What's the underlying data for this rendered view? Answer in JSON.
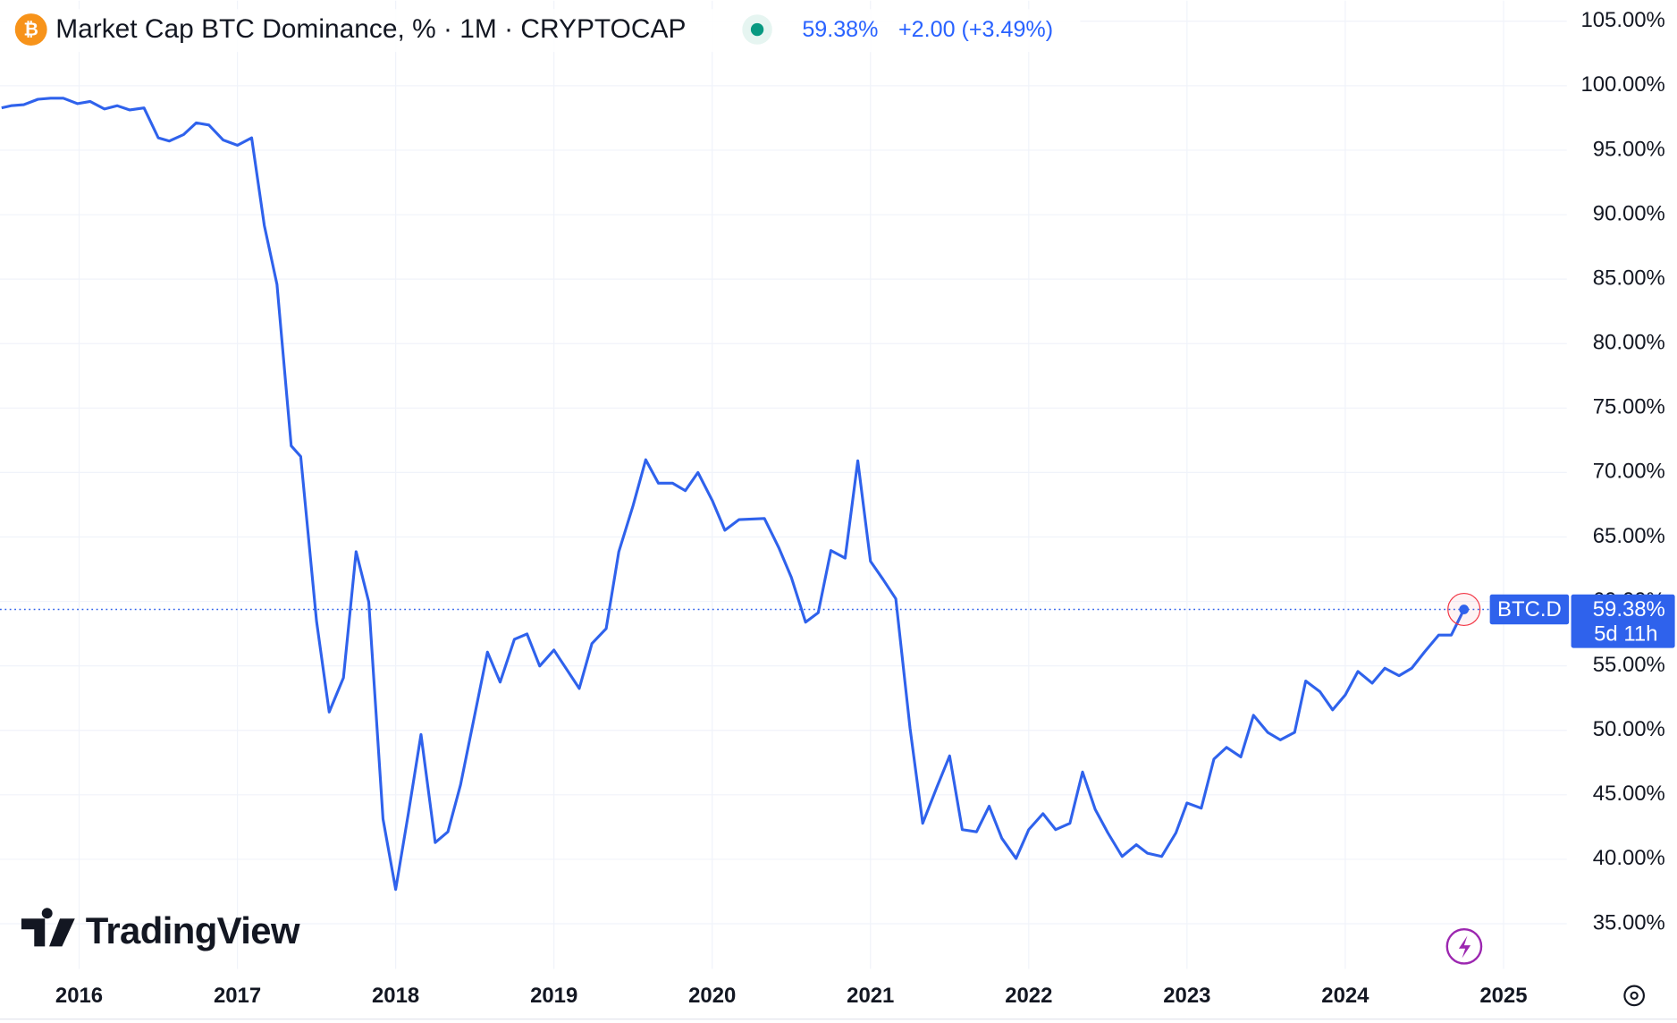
{
  "chart_data": {
    "type": "line",
    "title": "Market Cap BTC Dominance, % · 1M · CRYPTOCAP",
    "price_label": "59.38%",
    "change_label": "+2.00 (+3.49%)",
    "symbol": "BTC.D",
    "countdown": "5d 11h",
    "brand": "TradingView",
    "grid": true,
    "xlim": [
      2015.5,
      2025.4
    ],
    "ylim": [
      31.5,
      106.6
    ],
    "xticks": [
      2016,
      2017,
      2018,
      2019,
      2020,
      2021,
      2022,
      2023,
      2024,
      2025
    ],
    "yticks": [
      {
        "value": 35,
        "label": "35.00%"
      },
      {
        "value": 40,
        "label": "40.00%"
      },
      {
        "value": 45,
        "label": "45.00%"
      },
      {
        "value": 50,
        "label": "50.00%"
      },
      {
        "value": 55,
        "label": "55.00%"
      },
      {
        "value": 60,
        "label": "60.00%"
      },
      {
        "value": 65,
        "label": "65.00%"
      },
      {
        "value": 70,
        "label": "70.00%"
      },
      {
        "value": 75,
        "label": "75.00%"
      },
      {
        "value": 80,
        "label": "80.00%"
      },
      {
        "value": 85,
        "label": "85.00%"
      },
      {
        "value": 90,
        "label": "90.00%"
      },
      {
        "value": 95,
        "label": "95.00%"
      },
      {
        "value": 100,
        "label": "100.00%"
      },
      {
        "value": 105,
        "label": "105.00%"
      }
    ],
    "x": [
      2015.51,
      2015.57,
      2015.65,
      2015.74,
      2015.82,
      2015.9,
      2015.99,
      2016.07,
      2016.16,
      2016.24,
      2016.32,
      2016.41,
      2016.5,
      2016.57,
      2016.66,
      2016.74,
      2016.82,
      2016.91,
      2017.0,
      2017.09,
      2017.17,
      2017.25,
      2017.34,
      2017.4,
      2017.5,
      2017.58,
      2017.67,
      2017.75,
      2017.83,
      2017.92,
      2018.0,
      2018.08,
      2018.16,
      2018.25,
      2018.33,
      2018.41,
      2018.58,
      2018.66,
      2018.75,
      2018.83,
      2018.91,
      2019.0,
      2019.16,
      2019.24,
      2019.33,
      2019.41,
      2019.5,
      2019.58,
      2019.66,
      2019.75,
      2019.83,
      2019.91,
      2020.0,
      2020.08,
      2020.17,
      2020.33,
      2020.42,
      2020.5,
      2020.59,
      2020.67,
      2020.75,
      2020.84,
      2020.92,
      2021.0,
      2021.08,
      2021.16,
      2021.25,
      2021.33,
      2021.42,
      2021.5,
      2021.58,
      2021.67,
      2021.75,
      2021.83,
      2021.92,
      2022.0,
      2022.09,
      2022.17,
      2022.26,
      2022.34,
      2022.42,
      2022.5,
      2022.59,
      2022.68,
      2022.75,
      2022.84,
      2022.93,
      2023.0,
      2023.09,
      2023.17,
      2023.25,
      2023.34,
      2023.42,
      2023.51,
      2023.59,
      2023.68,
      2023.75,
      2023.84,
      2023.92,
      2024.0,
      2024.08,
      2024.17,
      2024.25,
      2024.34,
      2024.42,
      2024.5,
      2024.59,
      2024.67,
      2024.75
    ],
    "series": [
      {
        "name": "BTC.D",
        "color": "#2f62ec",
        "values": [
          98.28,
          98.45,
          98.53,
          98.95,
          99.03,
          99.03,
          98.61,
          98.78,
          98.2,
          98.45,
          98.12,
          98.28,
          95.96,
          95.71,
          96.21,
          97.12,
          96.95,
          95.79,
          95.38,
          95.96,
          89.16,
          84.6,
          72.07,
          71.24,
          58.47,
          51.42,
          54.08,
          63.86,
          59.96,
          43.13,
          37.66,
          43.54,
          49.68,
          41.3,
          42.13,
          45.78,
          56.07,
          53.74,
          57.06,
          57.48,
          54.99,
          56.23,
          53.25,
          56.73,
          57.89,
          63.86,
          67.43,
          70.99,
          69.17,
          69.17,
          68.59,
          70.0,
          67.84,
          65.52,
          66.35,
          66.43,
          64.19,
          61.87,
          58.39,
          59.13,
          63.95,
          63.36,
          70.91,
          63.12,
          61.7,
          60.21,
          50.18,
          42.79,
          45.61,
          48.02,
          42.3,
          42.13,
          44.12,
          41.63,
          40.06,
          42.3,
          43.54,
          42.3,
          42.79,
          46.77,
          43.87,
          42.05,
          40.22,
          41.13,
          40.47,
          40.22,
          42.05,
          44.37,
          43.96,
          47.77,
          48.68,
          47.94,
          51.17,
          49.84,
          49.26,
          49.84,
          53.83,
          53.0,
          51.59,
          52.75,
          54.57,
          53.66,
          54.82,
          54.24,
          54.82,
          56.07,
          57.39,
          57.39,
          59.38
        ]
      }
    ]
  }
}
